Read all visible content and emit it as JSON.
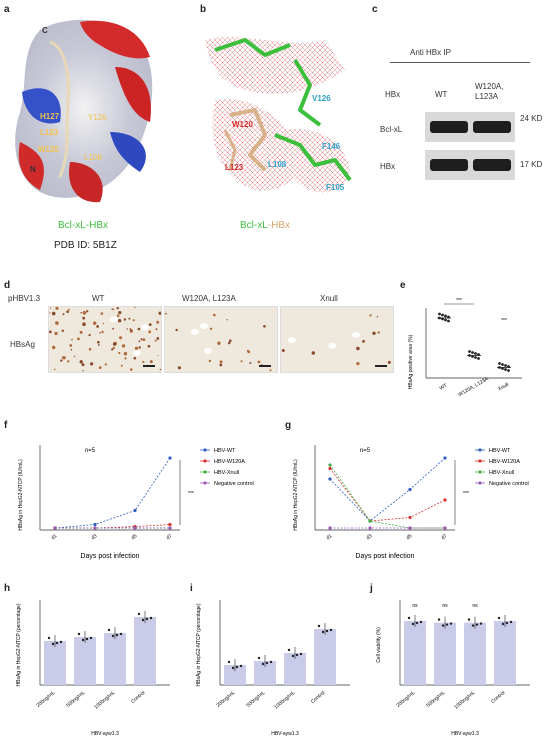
{
  "panels": {
    "a": {
      "letter": "a",
      "title_part1": "Bcl-xL",
      "title_sep": "-",
      "title_part2": "HBx",
      "pdb": "PDB ID: 5B1Z",
      "labels": {
        "c": "C",
        "n": "N",
        "h127": "H127",
        "l123": "L123",
        "w120": "W120",
        "y126": "Y126",
        "l108": "L108"
      }
    },
    "b": {
      "letter": "b",
      "title_part1": "Bcl-xL",
      "title_sep": "-",
      "title_part2": "HBx",
      "labels": {
        "v126": "V126",
        "w120": "W120",
        "f146": "F146",
        "l108": "L108",
        "l123": "L123",
        "f105": "F105"
      }
    },
    "c": {
      "letter": "c",
      "ip_label": "Anti HBx IP",
      "hbx_label": "HBx",
      "col_wt": "WT",
      "col_mut": "W120A,\nL123A",
      "row1": "Bcl-xL",
      "row2": "HBx",
      "mw1": "24 KD",
      "mw2": "17 KD"
    },
    "d": {
      "letter": "d",
      "plasmid": "pHBV1.3",
      "row_label": "HBsAg",
      "cols": [
        "WT",
        "W120A, L123A",
        "Xnull"
      ]
    },
    "e": {
      "letter": "e",
      "ylabel": "HBsAg positive area (%)",
      "sig1": "***",
      "sig2": "***",
      "xticks": [
        "WT",
        "W120A, L123A",
        "Xnull"
      ]
    },
    "f": {
      "letter": "f",
      "n": "n=5",
      "xlabel": "Days post infection",
      "ylabel": "HBsAg in HepG2-NTCP (IU/mL)",
      "sig": "***",
      "legend": [
        "HBV-WT",
        "HBV-W120A",
        "HBV-Xnull",
        "Negative control"
      ],
      "legend_colors": [
        "#2f5fbf",
        "#d83030",
        "#3fae3f",
        "#9b59b6"
      ]
    },
    "g": {
      "letter": "g",
      "n": "n=5",
      "xlabel": "Days post infection",
      "ylabel": "HBsAg in HepG2-NTCP (IU/mL)",
      "sig": "***",
      "legend": [
        "HBV-WT",
        "HBV-W120A",
        "HBV-Xnull",
        "Negative control"
      ],
      "legend_colors": [
        "#2f5fbf",
        "#d83030",
        "#3fae3f",
        "#9b59b6"
      ]
    },
    "h": {
      "letter": "h",
      "ylabel": "HBsAg in HepG2-NTCP (percentage)",
      "group": "HBV-ayw1.3",
      "xticks": [
        "200ng/mL",
        "500ng/mL",
        "1000ng/mL",
        "Control"
      ]
    },
    "i": {
      "letter": "i",
      "ylabel": "HBsAg in HepG2-NTCP (percentage)",
      "group": "HBV-ayw1.3",
      "xticks": [
        "200ng/mL",
        "500ng/mL",
        "1000ng/mL",
        "Control"
      ]
    },
    "j": {
      "letter": "j",
      "ylabel": "Cell viability (%)",
      "group": "HBV-ayw1.3",
      "sig": [
        "ns",
        "ns",
        "ns"
      ],
      "xticks": [
        "200ng/mL",
        "500ng/mL",
        "1000ng/mL",
        "Control"
      ]
    }
  },
  "chart_data": [
    {
      "type": "scatter",
      "panel": "e",
      "categories": [
        "WT",
        "W120A, L123A",
        "Xnull"
      ],
      "values": [
        0.4,
        0.15,
        0.07
      ]
    },
    {
      "type": "line",
      "panel": "f",
      "x": [
        "d1",
        "d3",
        "d5",
        "d7"
      ],
      "series": [
        {
          "name": "HBV-WT",
          "values": [
            0,
            0.05,
            0.25,
            1.0
          ]
        },
        {
          "name": "HBV-W120A",
          "values": [
            0,
            0.0,
            0.02,
            0.05
          ]
        },
        {
          "name": "HBV-Xnull",
          "values": [
            0,
            0,
            0,
            0
          ]
        },
        {
          "name": "Negative control",
          "values": [
            0,
            0,
            0,
            0
          ]
        }
      ]
    },
    {
      "type": "line",
      "panel": "g",
      "x": [
        "d1",
        "d3",
        "d5",
        "d7"
      ],
      "series": [
        {
          "name": "HBV-WT",
          "values": [
            0.7,
            0.1,
            0.55,
            1.0
          ]
        },
        {
          "name": "HBV-W120A",
          "values": [
            0.85,
            0.1,
            0.15,
            0.4
          ]
        },
        {
          "name": "HBV-Xnull",
          "values": [
            0.9,
            0.1,
            0,
            0
          ]
        },
        {
          "name": "Negative control",
          "values": [
            0,
            0,
            0,
            0
          ]
        }
      ]
    },
    {
      "type": "bar",
      "panel": "h",
      "categories": [
        "200ng/mL",
        "500ng/mL",
        "1000ng/mL",
        "Control"
      ],
      "values": [
        0.55,
        0.6,
        0.65,
        0.85
      ],
      "ylim": [
        0,
        1
      ]
    },
    {
      "type": "bar",
      "panel": "i",
      "categories": [
        "200ng/mL",
        "500ng/mL",
        "1000ng/mL",
        "Control"
      ],
      "values": [
        0.25,
        0.3,
        0.4,
        0.7
      ],
      "ylim": [
        0,
        1
      ]
    },
    {
      "type": "bar",
      "panel": "j",
      "categories": [
        "200ng/mL",
        "500ng/mL",
        "1000ng/mL",
        "Control"
      ],
      "values": [
        0.8,
        0.78,
        0.78,
        0.8
      ],
      "ylim": [
        0,
        1
      ]
    }
  ]
}
